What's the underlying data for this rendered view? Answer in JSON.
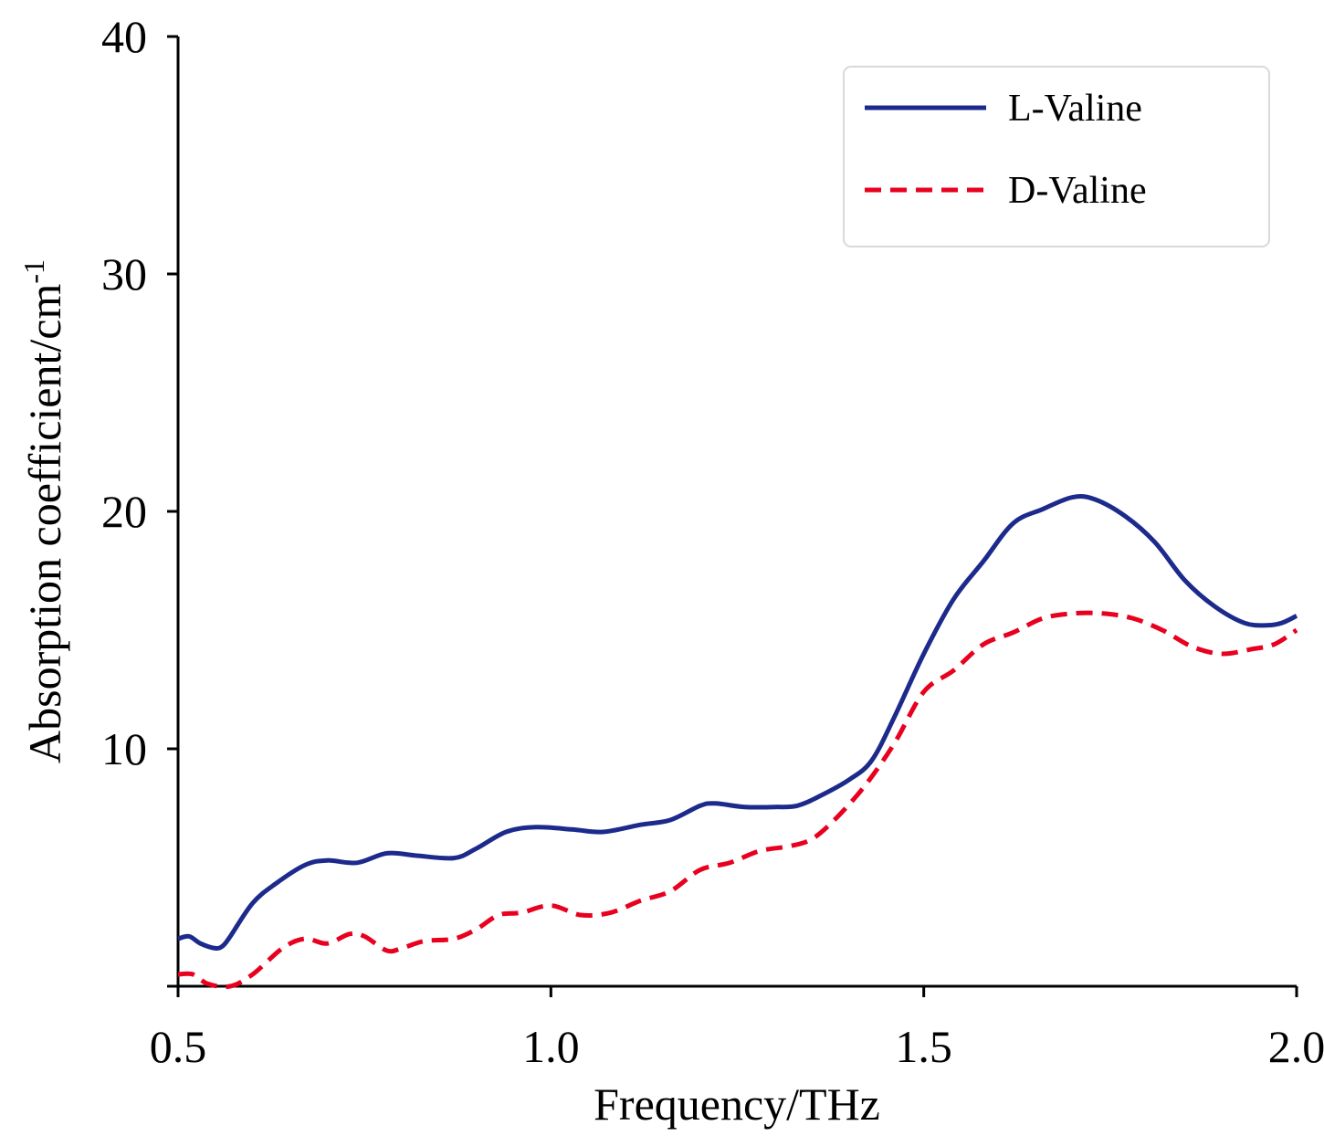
{
  "chart_data": {
    "type": "line",
    "xlabel": "Frequency/THz",
    "ylabel": "Absorption coefficient/cm",
    "ylabel_superscript": "-1",
    "xlim": [
      0.5,
      2.0
    ],
    "ylim": [
      0,
      40
    ],
    "xticks": [
      "0.5",
      "1.0",
      "1.5",
      "2.0"
    ],
    "yticks": [
      "10",
      "20",
      "30",
      "40"
    ],
    "xtick_values": [
      0.5,
      1.0,
      1.5,
      2.0
    ],
    "ytick_values": [
      10,
      20,
      30,
      40
    ],
    "grid": false,
    "legend_position": "top-right",
    "series": [
      {
        "name": "L-Valine",
        "color": "#1c2a8c",
        "style": "solid",
        "x": [
          0.5,
          0.515,
          0.53,
          0.55,
          0.56,
          0.57,
          0.6,
          0.63,
          0.67,
          0.7,
          0.74,
          0.78,
          0.82,
          0.87,
          0.9,
          0.94,
          0.98,
          1.03,
          1.07,
          1.12,
          1.16,
          1.2,
          1.22,
          1.26,
          1.3,
          1.33,
          1.36,
          1.4,
          1.43,
          1.46,
          1.5,
          1.54,
          1.58,
          1.62,
          1.66,
          1.7,
          1.73,
          1.77,
          1.81,
          1.85,
          1.89,
          1.93,
          1.96,
          1.98,
          2.0
        ],
        "y": [
          2.0,
          2.1,
          1.8,
          1.6,
          1.7,
          2.1,
          3.5,
          4.3,
          5.1,
          5.3,
          5.2,
          5.6,
          5.5,
          5.4,
          5.8,
          6.5,
          6.7,
          6.6,
          6.5,
          6.8,
          7.0,
          7.6,
          7.7,
          7.55,
          7.55,
          7.6,
          8.0,
          8.7,
          9.5,
          11.3,
          14.0,
          16.3,
          17.9,
          19.5,
          20.1,
          20.6,
          20.5,
          19.8,
          18.7,
          17.1,
          16.0,
          15.3,
          15.2,
          15.3,
          15.6
        ]
      },
      {
        "name": "D-Valine",
        "color": "#e8001e",
        "style": "dashed",
        "x": [
          0.5,
          0.52,
          0.54,
          0.57,
          0.6,
          0.64,
          0.67,
          0.7,
          0.73,
          0.75,
          0.78,
          0.8,
          0.83,
          0.87,
          0.9,
          0.93,
          0.96,
          1.0,
          1.04,
          1.08,
          1.12,
          1.16,
          1.2,
          1.24,
          1.28,
          1.32,
          1.35,
          1.38,
          1.42,
          1.46,
          1.5,
          1.54,
          1.58,
          1.62,
          1.66,
          1.7,
          1.74,
          1.78,
          1.82,
          1.86,
          1.9,
          1.94,
          1.97,
          2.0
        ],
        "y": [
          0.5,
          0.5,
          0.1,
          0.0,
          0.5,
          1.6,
          2.0,
          1.8,
          2.2,
          2.1,
          1.5,
          1.6,
          1.9,
          2.0,
          2.4,
          3.0,
          3.1,
          3.4,
          3.0,
          3.1,
          3.6,
          4.0,
          4.9,
          5.2,
          5.7,
          5.9,
          6.2,
          7.0,
          8.4,
          10.2,
          12.4,
          13.3,
          14.4,
          14.9,
          15.5,
          15.7,
          15.7,
          15.5,
          15.0,
          14.3,
          14.0,
          14.2,
          14.4,
          15.0
        ]
      }
    ]
  }
}
